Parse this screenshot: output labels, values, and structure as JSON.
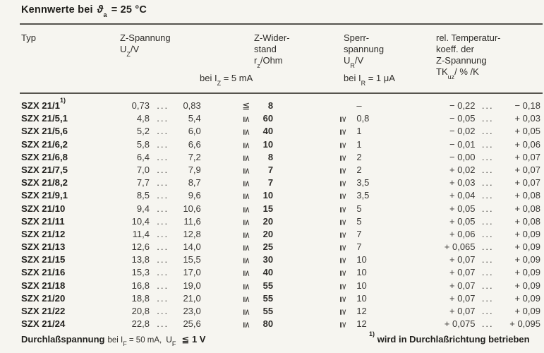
{
  "title": {
    "prefix": "Kennwerte bei",
    "theta": "ϑ",
    "theta_sub": "a",
    "suffix": "= 25 °C"
  },
  "header": {
    "typ": "Typ",
    "z_spannung": {
      "line1": "Z-Spannung",
      "sym": "U",
      "sym_sub": "Z",
      "unit": "/V",
      "condition": {
        "pre": "bei I",
        "sub": "Z",
        "post": " = 5 mA"
      }
    },
    "z_widerstand": {
      "line1": "Z-Wider-",
      "line2": "stand",
      "sym": "r",
      "sym_sub": "z",
      "unit": "/Ohm"
    },
    "sperrspannung": {
      "line1": "Sperr-",
      "line2": "spannung",
      "sym": "U",
      "sym_sub": "R",
      "unit": "/V",
      "condition": {
        "pre": "bei I",
        "sub": "R",
        "post": " = 1 μA"
      }
    },
    "temp_koeff": {
      "line1": "rel. Temperatur-",
      "line2": "koeff. der",
      "line3": "Z-Spannung",
      "sym": "TK",
      "sym_sub": "uz",
      "unit": "/ % /K"
    }
  },
  "table": {
    "ellipsis": "...",
    "le_symbol": "≦",
    "ge_symbol": "≧",
    "rows": [
      {
        "typ": "SZX 21/1",
        "fn": "1)",
        "uz": [
          "0,73",
          "0,83"
        ],
        "rz": "8",
        "rz_rot": false,
        "ur": "–",
        "ur_rot": false,
        "tk": [
          "− 0,22",
          "− 0,18"
        ]
      },
      {
        "typ": "SZX 21/5,1",
        "uz": [
          "4,8",
          "5,4"
        ],
        "rz": "60",
        "rz_rot": true,
        "ur": "0,8",
        "ur_rot": true,
        "tk": [
          "− 0,05",
          "+ 0,03"
        ]
      },
      {
        "typ": "SZX 21/5,6",
        "uz": [
          "5,2",
          "6,0"
        ],
        "rz": "40",
        "rz_rot": true,
        "ur": "1",
        "ur_rot": true,
        "tk": [
          "− 0,02",
          "+ 0,05"
        ]
      },
      {
        "typ": "SZX 21/6,2",
        "uz": [
          "5,8",
          "6,6"
        ],
        "rz": "10",
        "rz_rot": true,
        "ur": "1",
        "ur_rot": true,
        "tk": [
          "− 0,01",
          "+ 0,06"
        ]
      },
      {
        "typ": "SZX 21/6,8",
        "uz": [
          "6,4",
          "7,2"
        ],
        "rz": "8",
        "rz_rot": true,
        "ur": "2",
        "ur_rot": true,
        "tk": [
          "− 0,00",
          "+ 0,07"
        ]
      },
      {
        "typ": "SZX 21/7,5",
        "uz": [
          "7,0",
          "7,9"
        ],
        "rz": "7",
        "rz_rot": true,
        "ur": "2",
        "ur_rot": true,
        "tk": [
          "+ 0,02",
          "+ 0,07"
        ]
      },
      {
        "typ": "SZX 21/8,2",
        "uz": [
          "7,7",
          "8,7"
        ],
        "rz": "7",
        "rz_rot": true,
        "ur": "3,5",
        "ur_rot": true,
        "tk": [
          "+ 0,03",
          "+ 0,07"
        ]
      },
      {
        "typ": "SZX 21/9,1",
        "uz": [
          "8,5",
          "9,6"
        ],
        "rz": "10",
        "rz_rot": true,
        "ur": "3,5",
        "ur_rot": true,
        "tk": [
          "+ 0,04",
          "+ 0,08"
        ]
      },
      {
        "typ": "SZX 21/10",
        "uz": [
          "9,4",
          "10,6"
        ],
        "rz": "15",
        "rz_rot": true,
        "ur": "5",
        "ur_rot": true,
        "tk": [
          "+ 0,05",
          "+ 0,08"
        ]
      },
      {
        "typ": "SZX 21/11",
        "uz": [
          "10,4",
          "11,6"
        ],
        "rz": "20",
        "rz_rot": true,
        "ur": "5",
        "ur_rot": true,
        "tk": [
          "+ 0,05",
          "+ 0,08"
        ]
      },
      {
        "typ": "SZX 21/12",
        "uz": [
          "11,4",
          "12,8"
        ],
        "rz": "20",
        "rz_rot": true,
        "ur": "7",
        "ur_rot": true,
        "tk": [
          "+ 0,06",
          "+ 0,09"
        ]
      },
      {
        "typ": "SZX 21/13",
        "uz": [
          "12,6",
          "14,0"
        ],
        "rz": "25",
        "rz_rot": true,
        "ur": "7",
        "ur_rot": true,
        "tk": [
          "+ 0,065",
          "+ 0,09"
        ]
      },
      {
        "typ": "SZX 21/15",
        "uz": [
          "13,8",
          "15,5"
        ],
        "rz": "30",
        "rz_rot": true,
        "ur": "10",
        "ur_rot": true,
        "tk": [
          "+ 0,07",
          "+ 0,09"
        ]
      },
      {
        "typ": "SZX 21/16",
        "uz": [
          "15,3",
          "17,0"
        ],
        "rz": "40",
        "rz_rot": true,
        "ur": "10",
        "ur_rot": true,
        "tk": [
          "+ 0,07",
          "+ 0,09"
        ]
      },
      {
        "typ": "SZX 21/18",
        "uz": [
          "16,8",
          "19,0"
        ],
        "rz": "55",
        "rz_rot": true,
        "ur": "10",
        "ur_rot": true,
        "tk": [
          "+ 0,07",
          "+ 0,09"
        ]
      },
      {
        "typ": "SZX 21/20",
        "uz": [
          "18,8",
          "21,0"
        ],
        "rz": "55",
        "rz_rot": true,
        "ur": "10",
        "ur_rot": true,
        "tk": [
          "+ 0,07",
          "+ 0,09"
        ]
      },
      {
        "typ": "SZX 21/22",
        "uz": [
          "20,8",
          "23,0"
        ],
        "rz": "55",
        "rz_rot": true,
        "ur": "12",
        "ur_rot": true,
        "tk": [
          "+ 0,07",
          "+ 0,09"
        ]
      },
      {
        "typ": "SZX 21/24",
        "uz": [
          "22,8",
          "25,6"
        ],
        "rz": "80",
        "rz_rot": true,
        "ur": "12",
        "ur_rot": true,
        "tk": [
          "+ 0,075",
          "+ 0,095"
        ]
      }
    ]
  },
  "footer": {
    "left": {
      "bold": "Durchlaßspannung",
      "cond_pre": "bei I",
      "cond_sub": "F",
      "cond_post": " = 50 mA,",
      "u": "U",
      "u_sub": "F",
      "relation": "≦",
      "value": "1 V"
    },
    "note": {
      "marker": "1)",
      "text": " wird in Durchlaßrichtung betrieben"
    }
  }
}
